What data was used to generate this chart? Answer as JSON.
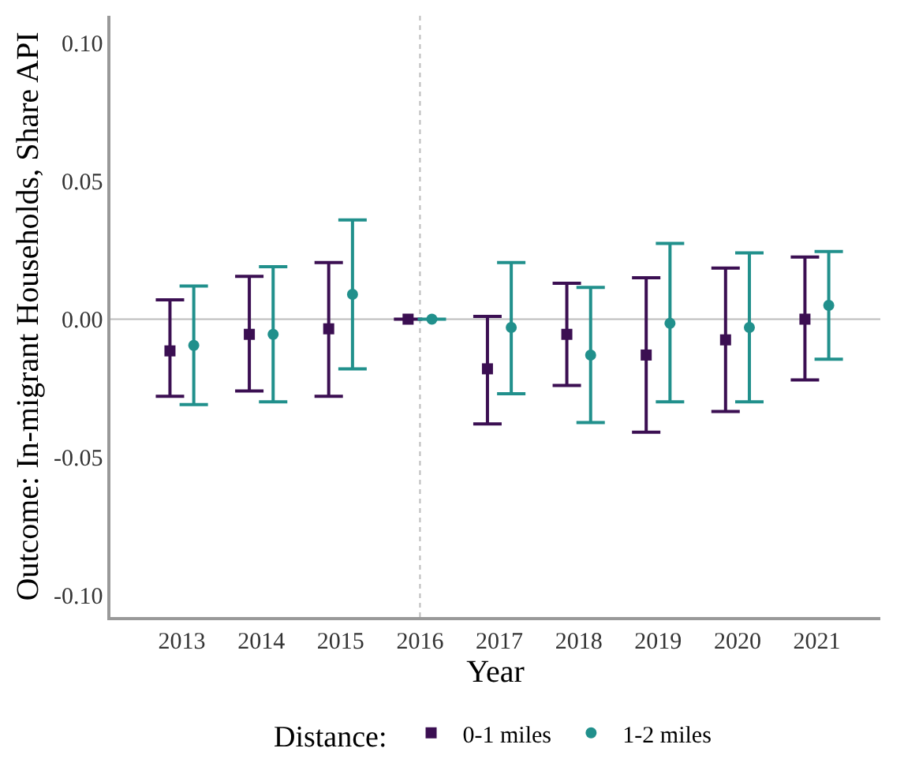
{
  "chart_data": {
    "type": "scatter",
    "xlabel": "Year",
    "ylabel": "Outcome: In-migrant Households, Share API",
    "legend_title": "Distance:",
    "legend": "bottom",
    "grid": false,
    "categories": [
      "2013",
      "2014",
      "2015",
      "2016",
      "2017",
      "2018",
      "2019",
      "2020",
      "2021"
    ],
    "ylim": [
      -0.108,
      0.11
    ],
    "yticks": [
      {
        "value": -0.1,
        "label": "-0.10"
      },
      {
        "value": -0.05,
        "label": "-0.05"
      },
      {
        "value": 0,
        "label": "0.00"
      },
      {
        "value": 0.05,
        "label": "0.05"
      },
      {
        "value": 0.1,
        "label": "0.10"
      }
    ],
    "series": [
      {
        "name": "0-1 miles",
        "color": "#3b0f52",
        "marker": "square",
        "values": [
          -0.0115,
          -0.0055,
          -0.0035,
          0.0,
          -0.018,
          -0.0055,
          -0.013,
          -0.0075,
          0.0
        ],
        "errors": [
          [
            -0.028,
            0.007
          ],
          [
            -0.026,
            0.0155
          ],
          [
            -0.028,
            0.0205
          ],
          null,
          [
            -0.038,
            0.001
          ],
          [
            -0.024,
            0.013
          ],
          [
            -0.041,
            0.015
          ],
          [
            -0.0335,
            0.0185
          ],
          [
            -0.022,
            0.0225
          ]
        ]
      },
      {
        "name": "1-2 miles",
        "color": "#21908c",
        "marker": "circle",
        "values": [
          -0.0095,
          -0.0055,
          0.009,
          0.0,
          -0.003,
          -0.013,
          -0.0015,
          -0.003,
          0.005
        ],
        "errors": [
          [
            -0.031,
            0.012
          ],
          [
            -0.03,
            0.019
          ],
          [
            -0.018,
            0.036
          ],
          null,
          [
            -0.027,
            0.0205
          ],
          [
            -0.0375,
            0.0115
          ],
          [
            -0.03,
            0.0275
          ],
          [
            -0.03,
            0.024
          ],
          [
            -0.0145,
            0.0245
          ]
        ]
      }
    ],
    "ref_lines": [
      {
        "axis": "y",
        "value": 0,
        "color": "#bbbbbb",
        "line_style": "solid"
      },
      {
        "axis": "x",
        "value": "2016",
        "color": "#bbbbbb",
        "line_style": "dotted"
      }
    ]
  }
}
